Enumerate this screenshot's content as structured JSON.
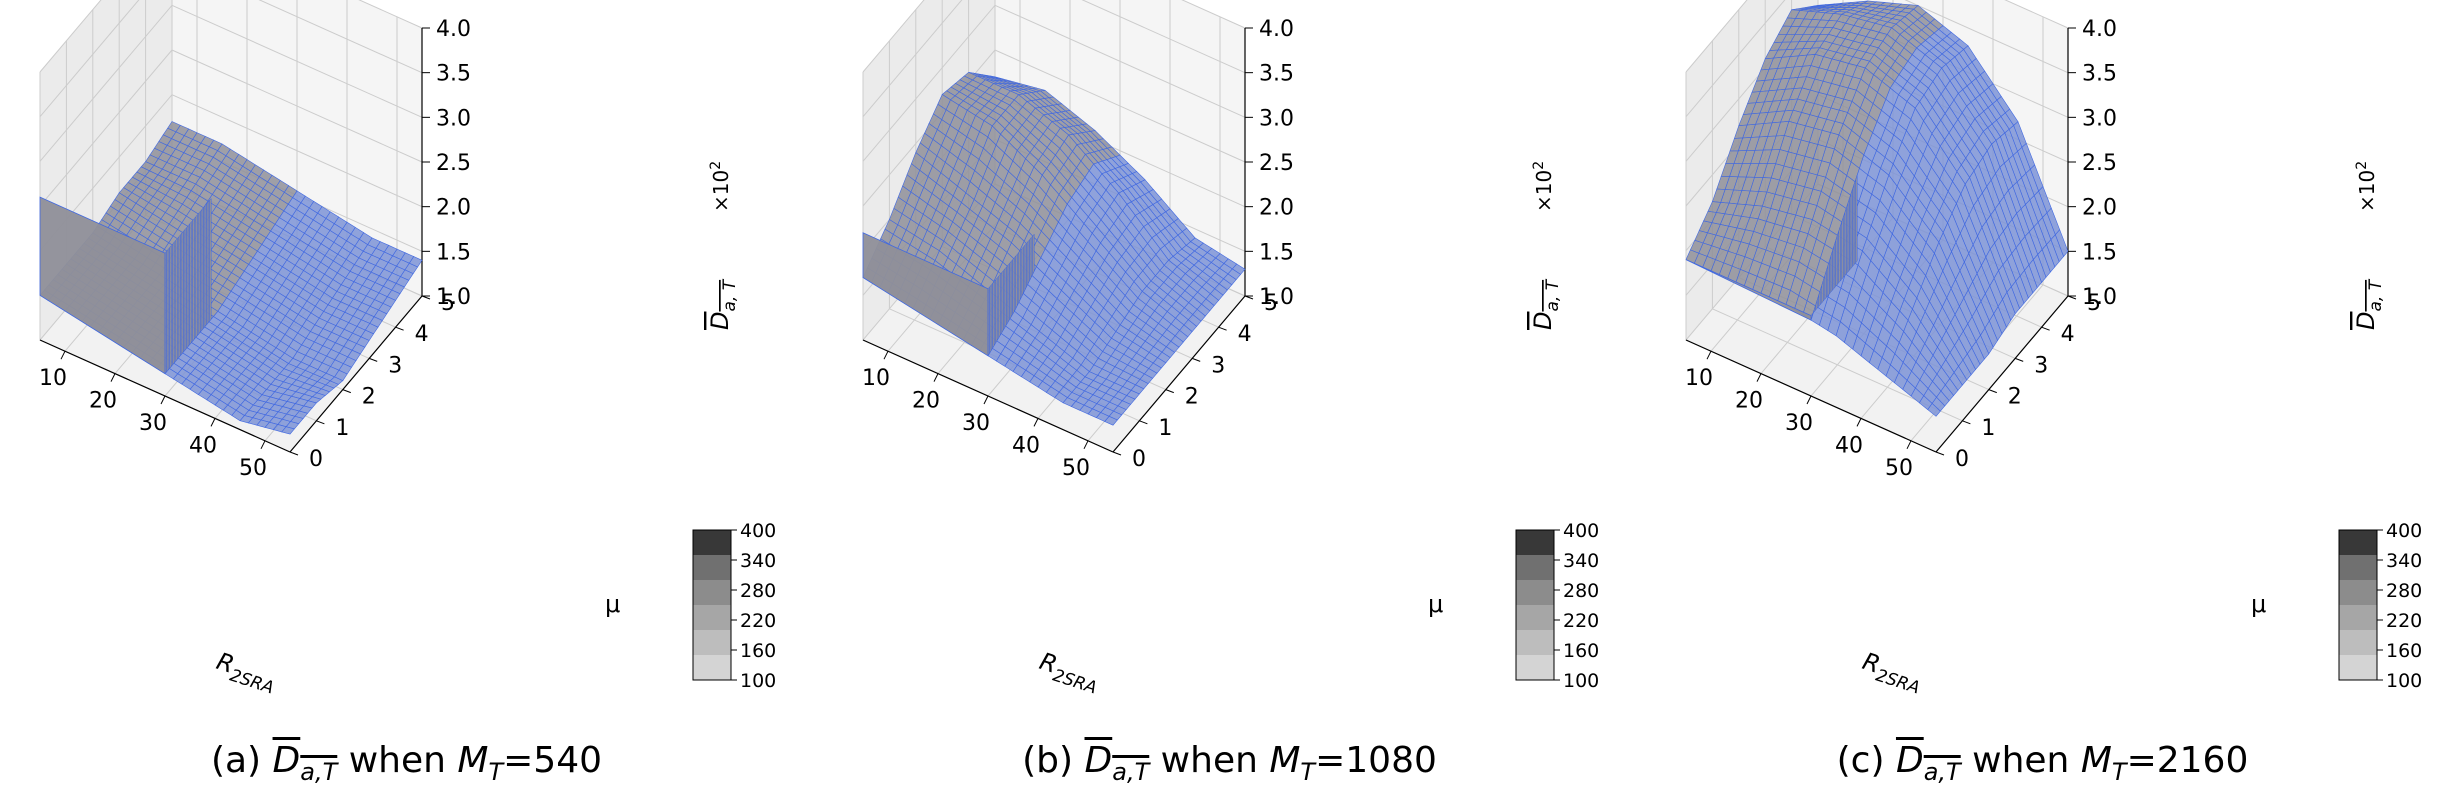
{
  "figure": {
    "colors": {
      "surface": "#4169e1",
      "surface_fill": "#7d93d6",
      "wall_fill": "#8f8f99",
      "pane": "#f2f2f2",
      "grid": "#cccccc"
    },
    "axis_labels": {
      "x": "R",
      "x_sub": "2SRA",
      "y": "μ",
      "z": "D",
      "z_sub": "a, T",
      "z_multiplier": "×10",
      "z_multiplier_exp": "2"
    },
    "x_ticks": [
      "50",
      "40",
      "30",
      "20",
      "10"
    ],
    "y_ticks": [
      "0",
      "1",
      "2",
      "3",
      "4",
      "5"
    ],
    "z_ticks": [
      "1.0",
      "1.5",
      "2.0",
      "2.5",
      "3.0",
      "3.5",
      "4.0"
    ],
    "colorbar": {
      "ticks": [
        "400",
        "340",
        "280",
        "220",
        "160",
        "100"
      ],
      "colors": [
        "#383838",
        "#707070",
        "#8c8c8c",
        "#a6a6a6",
        "#bdbdbd",
        "#d4d4d4"
      ]
    }
  },
  "panels": [
    {
      "caption_prefix": "(a) ",
      "caption_symbol": "D",
      "caption_symbol_sub": "a,T",
      "caption_mid": " when ",
      "caption_m": "M",
      "caption_m_sub": "T",
      "caption_value": "=540"
    },
    {
      "caption_prefix": "(b) ",
      "caption_symbol": "D",
      "caption_symbol_sub": "a,T",
      "caption_mid": " when ",
      "caption_m": "M",
      "caption_m_sub": "T",
      "caption_value": "=1080"
    },
    {
      "caption_prefix": "(c) ",
      "caption_symbol": "D",
      "caption_symbol_sub": "a,T",
      "caption_mid": " when ",
      "caption_m": "M",
      "caption_m_sub": "T",
      "caption_value": "=2160"
    }
  ],
  "chart_data": [
    {
      "type": "surface3d",
      "title": "",
      "xlabel": "R2SRA",
      "ylabel": "μ",
      "zlabel": "D a,T (×10^2)",
      "xlim": [
        5,
        55
      ],
      "ylim": [
        0,
        5
      ],
      "zlim": [
        1.0,
        4.0
      ],
      "x": [
        55,
        45,
        35,
        25,
        15,
        5
      ],
      "y": [
        0,
        1,
        2,
        3,
        4,
        5
      ],
      "z": [
        [
          1.2,
          1.1,
          1.2,
          1.3,
          1.4,
          1.5
        ],
        [
          1.2,
          1.1,
          1.2,
          1.3,
          1.4,
          1.5
        ],
        [
          1.1,
          1.1,
          1.2,
          1.3,
          1.4,
          1.5
        ],
        [
          1.2,
          1.2,
          1.3,
          1.4,
          1.5,
          1.6
        ],
        [
          1.3,
          1.3,
          1.4,
          1.5,
          1.6,
          1.6
        ],
        [
          1.4,
          1.4,
          1.5,
          1.6,
          1.7,
          1.7
        ]
      ],
      "wall_top": 2.6
    },
    {
      "type": "surface3d",
      "title": "",
      "xlabel": "R2SRA",
      "ylabel": "μ",
      "zlabel": "D a,T (×10^2)",
      "xlim": [
        5,
        55
      ],
      "ylim": [
        0,
        5
      ],
      "zlim": [
        1.0,
        4.0
      ],
      "x": [
        55,
        45,
        35,
        25,
        15,
        5
      ],
      "y": [
        0,
        1,
        2,
        3,
        4,
        5
      ],
      "z": [
        [
          1.3,
          1.3,
          1.4,
          1.5,
          1.6,
          1.7
        ],
        [
          1.3,
          1.3,
          1.5,
          1.7,
          1.9,
          2.0
        ],
        [
          1.3,
          1.4,
          1.7,
          2.0,
          2.2,
          2.4
        ],
        [
          1.3,
          1.5,
          1.9,
          2.3,
          2.6,
          2.7
        ],
        [
          1.3,
          1.5,
          2.0,
          2.4,
          2.6,
          2.6
        ],
        [
          1.3,
          1.4,
          1.8,
          2.1,
          2.3,
          2.2
        ]
      ],
      "wall_top": 2.2
    },
    {
      "type": "surface3d",
      "title": "",
      "xlabel": "R2SRA",
      "ylabel": "μ",
      "zlabel": "D a,T (×10^2)",
      "xlim": [
        5,
        55
      ],
      "ylim": [
        0,
        5
      ],
      "zlim": [
        1.0,
        4.0
      ],
      "x": [
        55,
        45,
        35,
        25,
        15,
        5
      ],
      "y": [
        0,
        1,
        2,
        3,
        4,
        5
      ],
      "z": [
        [
          1.4,
          1.6,
          1.8,
          1.9,
          1.9,
          1.9
        ],
        [
          1.4,
          2.0,
          2.4,
          2.5,
          2.4,
          2.2
        ],
        [
          1.4,
          2.4,
          2.9,
          3.1,
          3.0,
          2.7
        ],
        [
          1.5,
          2.7,
          3.3,
          3.5,
          3.4,
          3.1
        ],
        [
          1.5,
          2.8,
          3.4,
          3.6,
          3.5,
          3.3
        ],
        [
          1.5,
          2.7,
          3.3,
          3.5,
          3.3,
          3.0
        ]
      ],
      "wall_top": 1.9
    }
  ]
}
